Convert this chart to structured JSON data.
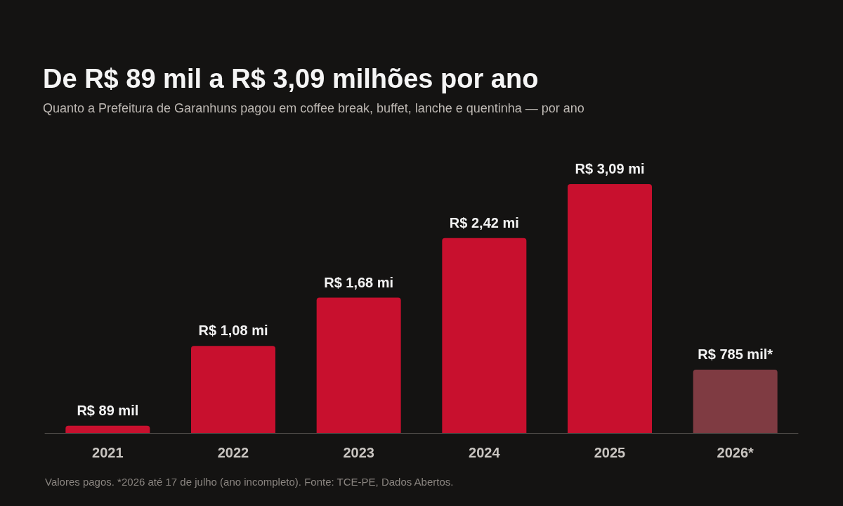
{
  "chart_data": {
    "type": "bar",
    "title": "De R$ 89 mil a R$ 3,09 milhões por ano",
    "subtitle": "Quanto a Prefeitura de Garanhuns pagou em coffee break, buffet, lanche e quentinha — por ano",
    "categories": [
      "2021",
      "2022",
      "2023",
      "2024",
      "2025",
      "2026*"
    ],
    "values": [
      0.089,
      1.08,
      1.68,
      2.42,
      3.09,
      0.785
    ],
    "colors": [
      "#c8102e",
      "#c8102e",
      "#c8102e",
      "#c8102e",
      "#c8102e",
      "#7f3b42"
    ],
    "value_labels": [
      "R$ 89 mil",
      "R$ 1,08 mi",
      "R$ 1,68 mi",
      "R$ 2,42 mi",
      "R$ 3,09 mi",
      "R$ 785 mil*"
    ],
    "annotations": [
      "Valores pagos. *2026 até 17 de julho (ano incompleto). Fonte: TCE-PE, Dados Abertos."
    ]
  }
}
